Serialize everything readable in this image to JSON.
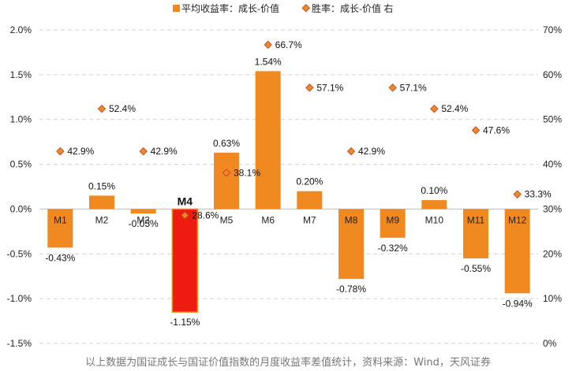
{
  "chart_data": {
    "type": "bar",
    "categories": [
      "M1",
      "M2",
      "M3",
      "M4",
      "M5",
      "M6",
      "M7",
      "M8",
      "M9",
      "M10",
      "M11",
      "M12"
    ],
    "highlight_category": "M4",
    "series": [
      {
        "name": "平均收益率：成长-价值",
        "type": "bar",
        "axis": "left",
        "values": [
          -0.43,
          0.15,
          -0.05,
          -1.15,
          0.63,
          1.54,
          0.2,
          -0.78,
          -0.32,
          0.1,
          -0.55,
          -0.94
        ],
        "labels": [
          "-0.43%",
          "0.15%",
          "-0.05%",
          "-1.15%",
          "0.63%",
          "1.54%",
          "0.20%",
          "-0.78%",
          "-0.32%",
          "0.10%",
          "-0.55%",
          "-0.94%"
        ],
        "color": "#F0891F",
        "highlight_color": "#EE1C10"
      },
      {
        "name": "胜率：成长-价值 右",
        "type": "scatter",
        "axis": "right",
        "values": [
          42.9,
          52.4,
          42.9,
          28.6,
          38.1,
          66.7,
          57.1,
          42.9,
          57.1,
          52.4,
          47.6,
          33.3
        ],
        "labels": [
          "42.9%",
          "52.4%",
          "42.9%",
          "28.6%",
          "38.1%",
          "66.7%",
          "57.1%",
          "42.9%",
          "57.1%",
          "52.4%",
          "47.6%",
          "33.3%"
        ],
        "color": "#F0891F",
        "stroke": "#C0392B"
      }
    ],
    "y_left": {
      "ylim": [
        -1.5,
        2.0
      ],
      "ticks": [
        2.0,
        1.5,
        1.0,
        0.5,
        0.0,
        -0.5,
        -1.0,
        -1.5
      ],
      "tick_labels": [
        "2.0%",
        "1.5%",
        "1.0%",
        "0.5%",
        "0.0%",
        "-0.5%",
        "-1.0%",
        "-1.5%"
      ]
    },
    "y_right": {
      "ylim": [
        0,
        70
      ],
      "ticks": [
        70,
        60,
        50,
        40,
        30,
        20,
        10,
        0
      ],
      "tick_labels": [
        "70%",
        "60%",
        "50%",
        "40%",
        "30%",
        "20%",
        "10%",
        "0%"
      ]
    },
    "grid": true,
    "legend_position": "top-center",
    "footnote": "以上数据为国证成长与国证价值指数的月度收益率差值统计，资料来源：Wind，天风证券"
  }
}
